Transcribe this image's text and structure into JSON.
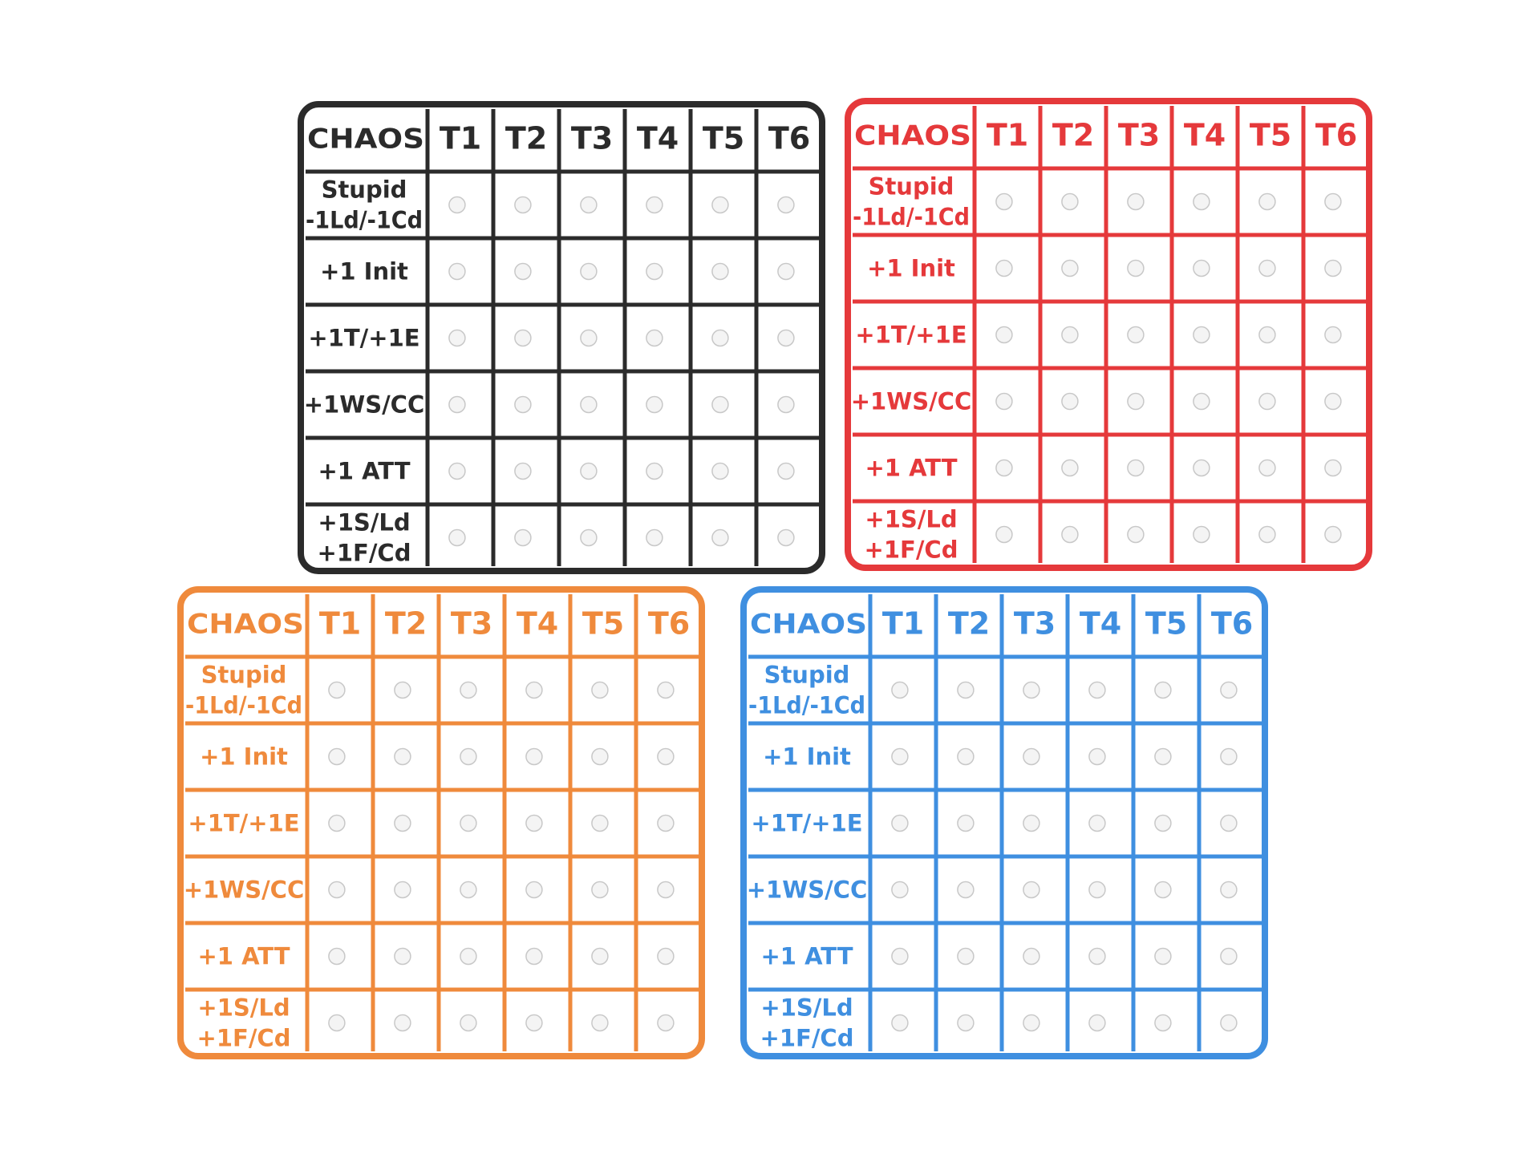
{
  "cards": [
    {
      "color": "#2b2b2b",
      "header": [
        "CHAOS",
        "T1",
        "T2",
        "T3",
        "T4",
        "T5",
        "T6"
      ],
      "rows": [
        [
          "Stupid",
          "-1Ld/-1Cd"
        ],
        [
          "+1 Init"
        ],
        [
          "+1T/+1E"
        ],
        [
          "+1WS/CC"
        ],
        [
          "+1 ATT"
        ],
        [
          "+1S/Ld",
          "+1F/Cd"
        ]
      ]
    },
    {
      "color": "#e5393b",
      "header": [
        "CHAOS",
        "T1",
        "T2",
        "T3",
        "T4",
        "T5",
        "T6"
      ],
      "rows": [
        [
          "Stupid",
          "-1Ld/-1Cd"
        ],
        [
          "+1 Init"
        ],
        [
          "+1T/+1E"
        ],
        [
          "+1WS/CC"
        ],
        [
          "+1 ATT"
        ],
        [
          "+1S/Ld",
          "+1F/Cd"
        ]
      ]
    },
    {
      "color": "#ef8a3c",
      "header": [
        "CHAOS",
        "T1",
        "T2",
        "T3",
        "T4",
        "T5",
        "T6"
      ],
      "rows": [
        [
          "Stupid",
          "-1Ld/-1Cd"
        ],
        [
          "+1 Init"
        ],
        [
          "+1T/+1E"
        ],
        [
          "+1WS/CC"
        ],
        [
          "+1 ATT"
        ],
        [
          "+1S/Ld",
          "+1F/Cd"
        ]
      ]
    },
    {
      "color": "#3f8fe0",
      "header": [
        "CHAOS",
        "T1",
        "T2",
        "T3",
        "T4",
        "T5",
        "T6"
      ],
      "rows": [
        [
          "Stupid",
          "-1Ld/-1Cd"
        ],
        [
          "+1 Init"
        ],
        [
          "+1T/+1E"
        ],
        [
          "+1WS/CC"
        ],
        [
          "+1 ATT"
        ],
        [
          "+1S/Ld",
          "+1F/Cd"
        ]
      ]
    }
  ]
}
